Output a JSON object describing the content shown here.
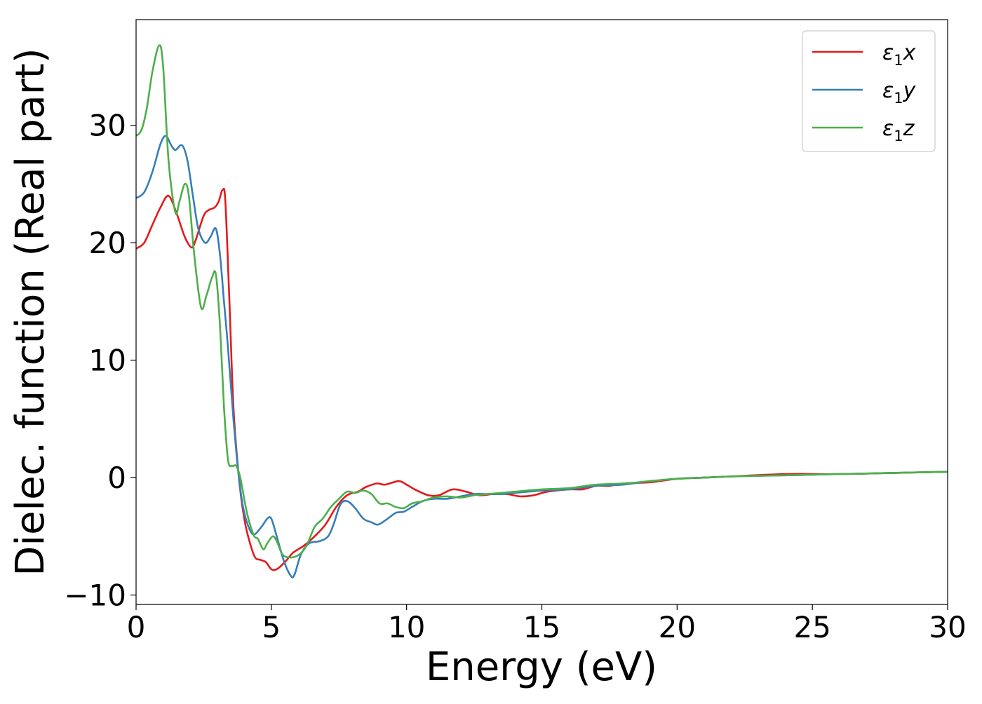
{
  "chart_data": {
    "type": "line",
    "title": "",
    "xlabel": "Energy (eV)",
    "ylabel": "Dielec. function (Real part)",
    "xlim": [
      0,
      30
    ],
    "ylim": [
      -10.8,
      39
    ],
    "xticks": [
      0,
      5,
      10,
      15,
      20,
      25,
      30
    ],
    "yticks": [
      -10,
      0,
      10,
      20,
      30
    ],
    "xtick_labels": [
      "0",
      "5",
      "10",
      "15",
      "20",
      "25",
      "30"
    ],
    "ytick_labels": [
      "−10",
      "0",
      "10",
      "20",
      "30"
    ],
    "grid": false,
    "legend_position": "top-right",
    "series": [
      {
        "name": "ε₁x",
        "legend_main": "ε",
        "legend_sub": "1",
        "legend_var": "x",
        "color": "#e41a1c",
        "points": [
          [
            0,
            19.5
          ],
          [
            0.3,
            20
          ],
          [
            0.6,
            21.5
          ],
          [
            0.9,
            23
          ],
          [
            1.2,
            24
          ],
          [
            1.5,
            22.5
          ],
          [
            1.8,
            20.5
          ],
          [
            2.05,
            19.6
          ],
          [
            2.2,
            20.2
          ],
          [
            2.5,
            22.3
          ],
          [
            2.7,
            22.8
          ],
          [
            2.9,
            23
          ],
          [
            3.05,
            23.5
          ],
          [
            3.2,
            24.5
          ],
          [
            3.3,
            23.5
          ],
          [
            3.45,
            15
          ],
          [
            3.6,
            6
          ],
          [
            3.8,
            0
          ],
          [
            4.0,
            -3.5
          ],
          [
            4.2,
            -5.5
          ],
          [
            4.4,
            -6.8
          ],
          [
            4.6,
            -7
          ],
          [
            4.8,
            -7.2
          ],
          [
            5.0,
            -7.8
          ],
          [
            5.2,
            -7.8
          ],
          [
            5.5,
            -7.2
          ],
          [
            5.8,
            -6.4
          ],
          [
            6.2,
            -5.8
          ],
          [
            6.6,
            -5
          ],
          [
            7.0,
            -4
          ],
          [
            7.4,
            -2.5
          ],
          [
            7.8,
            -1.5
          ],
          [
            8.2,
            -1.2
          ],
          [
            8.5,
            -0.8
          ],
          [
            8.9,
            -0.5
          ],
          [
            9.2,
            -0.6
          ],
          [
            9.7,
            -0.3
          ],
          [
            10.0,
            -0.6
          ],
          [
            10.3,
            -1
          ],
          [
            10.8,
            -1.5
          ],
          [
            11.2,
            -1.5
          ],
          [
            11.7,
            -1
          ],
          [
            12.2,
            -1.2
          ],
          [
            12.7,
            -1.5
          ],
          [
            13.2,
            -1.4
          ],
          [
            13.7,
            -1.4
          ],
          [
            14.2,
            -1.6
          ],
          [
            14.7,
            -1.5
          ],
          [
            15.2,
            -1.2
          ],
          [
            16.0,
            -1
          ],
          [
            16.5,
            -1
          ],
          [
            17.0,
            -0.7
          ],
          [
            17.5,
            -0.7
          ],
          [
            18.0,
            -0.5
          ],
          [
            19.0,
            -0.4
          ],
          [
            20.0,
            -0.1
          ],
          [
            21.0,
            0
          ],
          [
            22.0,
            0.1
          ],
          [
            24.0,
            0.3
          ],
          [
            26.0,
            0.3
          ],
          [
            28.0,
            0.4
          ],
          [
            30.0,
            0.5
          ]
        ]
      },
      {
        "name": "ε₁y",
        "legend_main": "ε",
        "legend_sub": "1",
        "legend_var": "y",
        "color": "#377eb8",
        "points": [
          [
            0,
            23.8
          ],
          [
            0.3,
            24.3
          ],
          [
            0.6,
            26
          ],
          [
            0.9,
            28.4
          ],
          [
            1.1,
            29.1
          ],
          [
            1.3,
            28.3
          ],
          [
            1.45,
            27.9
          ],
          [
            1.7,
            28.3
          ],
          [
            1.9,
            27
          ],
          [
            2.1,
            24
          ],
          [
            2.3,
            21.2
          ],
          [
            2.55,
            20
          ],
          [
            2.75,
            20.5
          ],
          [
            2.95,
            21.2
          ],
          [
            3.1,
            19
          ],
          [
            3.25,
            15
          ],
          [
            3.4,
            11
          ],
          [
            3.6,
            5
          ],
          [
            3.8,
            0
          ],
          [
            4.0,
            -3
          ],
          [
            4.3,
            -4.8
          ],
          [
            4.6,
            -4.3
          ],
          [
            4.85,
            -3.5
          ],
          [
            5.0,
            -3.5
          ],
          [
            5.2,
            -5
          ],
          [
            5.45,
            -7
          ],
          [
            5.7,
            -8.3
          ],
          [
            5.85,
            -8.3
          ],
          [
            6.1,
            -6.5
          ],
          [
            6.4,
            -5.6
          ],
          [
            6.8,
            -5.4
          ],
          [
            7.1,
            -5
          ],
          [
            7.3,
            -4
          ],
          [
            7.55,
            -2.3
          ],
          [
            7.8,
            -2
          ],
          [
            8.1,
            -2.6
          ],
          [
            8.4,
            -3.5
          ],
          [
            8.7,
            -3.8
          ],
          [
            8.95,
            -4
          ],
          [
            9.3,
            -3.5
          ],
          [
            9.6,
            -3
          ],
          [
            9.9,
            -2.9
          ],
          [
            10.2,
            -2.5
          ],
          [
            10.6,
            -2
          ],
          [
            11.0,
            -1.8
          ],
          [
            11.5,
            -1.8
          ],
          [
            12.0,
            -1.6
          ],
          [
            12.5,
            -1.4
          ],
          [
            13.0,
            -1.4
          ],
          [
            13.5,
            -1.4
          ],
          [
            14.0,
            -1.3
          ],
          [
            15.0,
            -1.1
          ],
          [
            16.0,
            -1
          ],
          [
            17.0,
            -0.7
          ],
          [
            18.0,
            -0.6
          ],
          [
            19.0,
            -0.3
          ],
          [
            20.0,
            -0.1
          ],
          [
            21.0,
            0
          ],
          [
            22.0,
            0.1
          ],
          [
            24.0,
            0.2
          ],
          [
            26.0,
            0.3
          ],
          [
            28.0,
            0.4
          ],
          [
            30.0,
            0.5
          ]
        ]
      },
      {
        "name": "ε₁z",
        "legend_main": "ε",
        "legend_sub": "1",
        "legend_var": "z",
        "color": "#4daf4a",
        "points": [
          [
            0,
            29.1
          ],
          [
            0.2,
            29.6
          ],
          [
            0.4,
            31.5
          ],
          [
            0.6,
            34.5
          ],
          [
            0.85,
            36.8
          ],
          [
            1.0,
            35
          ],
          [
            1.2,
            27
          ],
          [
            1.45,
            22.6
          ],
          [
            1.6,
            23.5
          ],
          [
            1.8,
            25
          ],
          [
            1.95,
            24
          ],
          [
            2.15,
            19
          ],
          [
            2.4,
            14.5
          ],
          [
            2.6,
            15.5
          ],
          [
            2.8,
            17
          ],
          [
            2.95,
            17.3
          ],
          [
            3.1,
            13
          ],
          [
            3.25,
            6
          ],
          [
            3.4,
            1.5
          ],
          [
            3.55,
            1
          ],
          [
            3.7,
            1
          ],
          [
            3.85,
            0
          ],
          [
            4.1,
            -3
          ],
          [
            4.35,
            -4.9
          ],
          [
            4.5,
            -5.2
          ],
          [
            4.7,
            -6.1
          ],
          [
            4.85,
            -5.6
          ],
          [
            5.05,
            -5
          ],
          [
            5.2,
            -5.4
          ],
          [
            5.4,
            -6.5
          ],
          [
            5.65,
            -6.8
          ],
          [
            6.0,
            -6.6
          ],
          [
            6.3,
            -5.8
          ],
          [
            6.6,
            -4.2
          ],
          [
            6.9,
            -3.5
          ],
          [
            7.2,
            -2.5
          ],
          [
            7.5,
            -1.8
          ],
          [
            7.8,
            -1.2
          ],
          [
            8.1,
            -1.3
          ],
          [
            8.4,
            -1.1
          ],
          [
            8.7,
            -1.4
          ],
          [
            9.0,
            -2.2
          ],
          [
            9.3,
            -2.2
          ],
          [
            9.6,
            -2.5
          ],
          [
            9.9,
            -2.6
          ],
          [
            10.2,
            -2.2
          ],
          [
            10.6,
            -2
          ],
          [
            11.0,
            -1.7
          ],
          [
            11.5,
            -1.6
          ],
          [
            12.0,
            -1.7
          ],
          [
            12.5,
            -1.5
          ],
          [
            13.0,
            -1.4
          ],
          [
            13.5,
            -1.3
          ],
          [
            14.0,
            -1.2
          ],
          [
            15.0,
            -1
          ],
          [
            16.0,
            -0.9
          ],
          [
            17.0,
            -0.6
          ],
          [
            18.0,
            -0.5
          ],
          [
            19.0,
            -0.3
          ],
          [
            20.0,
            -0.1
          ],
          [
            21.0,
            0
          ],
          [
            22.0,
            0.1
          ],
          [
            24.0,
            0.2
          ],
          [
            26.0,
            0.3
          ],
          [
            28.0,
            0.4
          ],
          [
            30.0,
            0.5
          ]
        ]
      }
    ]
  }
}
